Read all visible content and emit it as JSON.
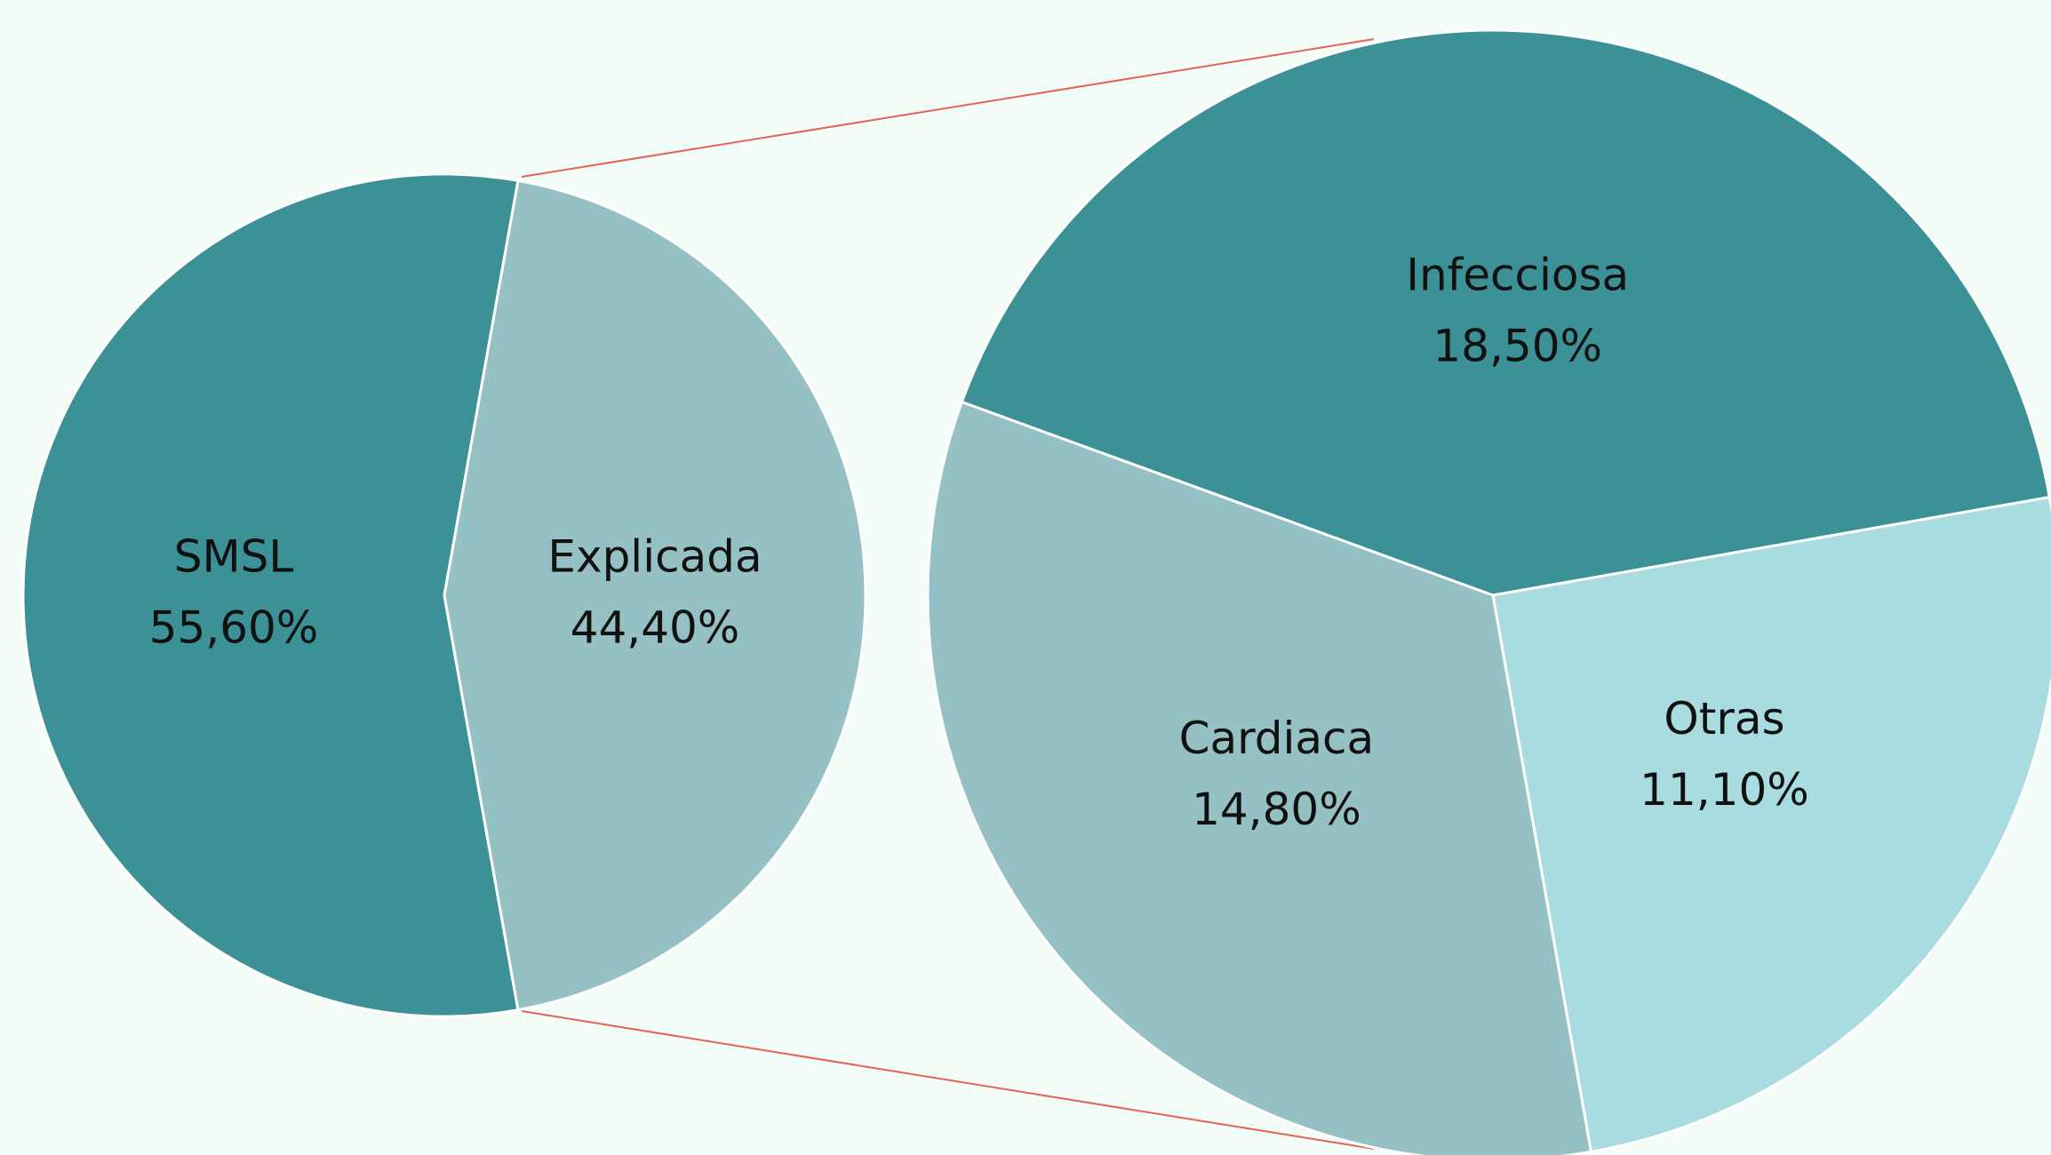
{
  "chart_data": [
    {
      "type": "pie",
      "categories": [
        "SMSL",
        "Explicada"
      ],
      "values": [
        55.6,
        44.4
      ],
      "value_labels": [
        "55,60%",
        "44,40%"
      ],
      "colors": [
        "#3b9195",
        "#96c1c4"
      ]
    },
    {
      "type": "pie",
      "categories": [
        "Infecciosa",
        "Otras",
        "Cardiaca"
      ],
      "values": [
        18.5,
        11.1,
        14.8
      ],
      "value_labels": [
        "18,50%",
        "11,10%",
        "14,80%"
      ],
      "colors": [
        "#3b9195",
        "#a9dce1",
        "#96c1c4"
      ]
    }
  ]
}
